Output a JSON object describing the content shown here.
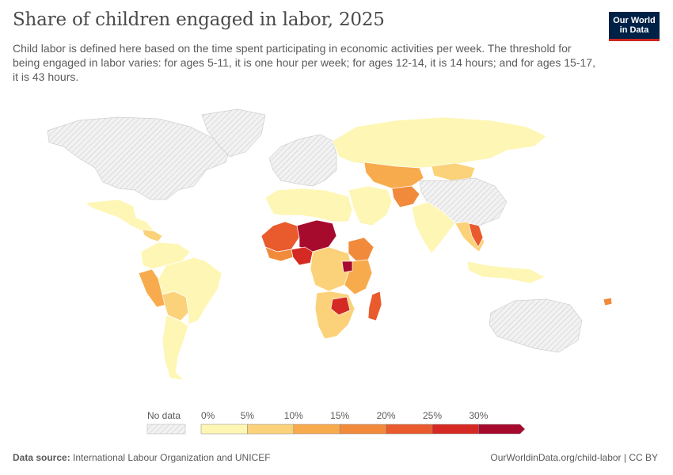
{
  "header": {
    "title": "Share of children engaged in labor, 2025",
    "subtitle": "Child labor is defined here based on the time spent participating in economic activities per week. The threshold for being engaged in labor varies: for ages 5-11, it is one hour per week; for ages 12-14, it is 14 hours; and for ages 15-17, it is 43 hours.",
    "logo_line1": "Our World",
    "logo_line2": "in Data"
  },
  "legend": {
    "no_data_label": "No data",
    "bins": [
      {
        "label": "0%",
        "color": "#fef6b4"
      },
      {
        "label": "5%",
        "color": "#fbd27a"
      },
      {
        "label": "10%",
        "color": "#f8ab4c"
      },
      {
        "label": "15%",
        "color": "#f18a3b"
      },
      {
        "label": "20%",
        "color": "#e95a2c"
      },
      {
        "label": "25%",
        "color": "#d42a23"
      },
      {
        "label": "30%",
        "color": "#a60a2c"
      }
    ]
  },
  "colors": {
    "no_data": "#f0f0f0",
    "border": "#ffffff",
    "ocean": "#ffffff"
  },
  "map_regions": [
    {
      "name": "north-america",
      "bin": -1
    },
    {
      "name": "greenland",
      "bin": -1
    },
    {
      "name": "mexico",
      "bin": 0
    },
    {
      "name": "central-america",
      "bin": 1
    },
    {
      "name": "colombia-venezuela",
      "bin": 0
    },
    {
      "name": "peru",
      "bin": 2
    },
    {
      "name": "bolivia",
      "bin": 1
    },
    {
      "name": "brazil",
      "bin": 0
    },
    {
      "name": "southern-cone",
      "bin": 0
    },
    {
      "name": "europe",
      "bin": -1
    },
    {
      "name": "north-africa",
      "bin": 0
    },
    {
      "name": "sahel-west",
      "bin": 4
    },
    {
      "name": "sahel-central",
      "bin": 6
    },
    {
      "name": "west-africa-coast",
      "bin": 3
    },
    {
      "name": "nigeria",
      "bin": 5
    },
    {
      "name": "ethiopia",
      "bin": 3
    },
    {
      "name": "central-africa",
      "bin": 1
    },
    {
      "name": "east-africa",
      "bin": 2
    },
    {
      "name": "uganda",
      "bin": 6
    },
    {
      "name": "southern-africa",
      "bin": 1
    },
    {
      "name": "zimbabwe",
      "bin": 5
    },
    {
      "name": "madagascar",
      "bin": 4
    },
    {
      "name": "russia",
      "bin": 0
    },
    {
      "name": "middle-east",
      "bin": 0
    },
    {
      "name": "central-asia",
      "bin": 2
    },
    {
      "name": "mongolia",
      "bin": 1
    },
    {
      "name": "afghanistan",
      "bin": 3
    },
    {
      "name": "china",
      "bin": -1
    },
    {
      "name": "india",
      "bin": 0
    },
    {
      "name": "southeast-asia",
      "bin": 1
    },
    {
      "name": "laos",
      "bin": 4
    },
    {
      "name": "indonesia",
      "bin": 0
    },
    {
      "name": "australia",
      "bin": -1
    },
    {
      "name": "pacific-islands",
      "bin": 3
    }
  ],
  "footer": {
    "source_label": "Data source:",
    "source_text": "International Labour Organization and UNICEF",
    "url": "OurWorldinData.org/child-labor | CC BY"
  }
}
